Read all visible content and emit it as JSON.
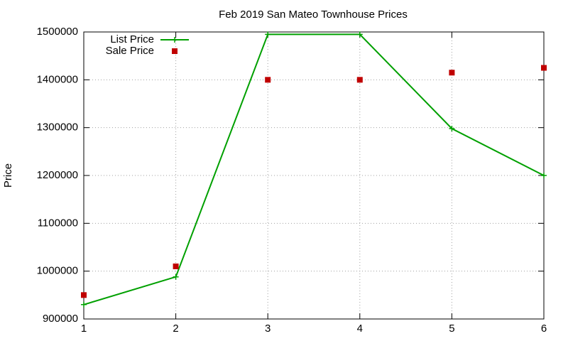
{
  "chart_data": {
    "type": "line",
    "title": "Feb 2019 San Mateo Townhouse Prices",
    "y_label": "Price",
    "x": [
      1,
      2,
      3,
      4,
      5,
      6
    ],
    "series": [
      {
        "name": "List Price",
        "color": "#00a000",
        "mode": "linespoints",
        "values": [
          930000,
          988000,
          1495000,
          1495000,
          1298000,
          1200000
        ]
      },
      {
        "name": "Sale Price",
        "color": "#c00000",
        "mode": "points",
        "values": [
          950000,
          1010000,
          1400000,
          1400000,
          1415000,
          1425000
        ]
      }
    ],
    "xlim": [
      1,
      6
    ],
    "xticks": [
      1,
      2,
      3,
      4,
      5,
      6
    ],
    "ylim": [
      900000,
      1500000
    ],
    "yticks": [
      900000,
      1000000,
      1100000,
      1200000,
      1300000,
      1400000,
      1500000
    ],
    "grid": true,
    "legend": "top-left"
  }
}
